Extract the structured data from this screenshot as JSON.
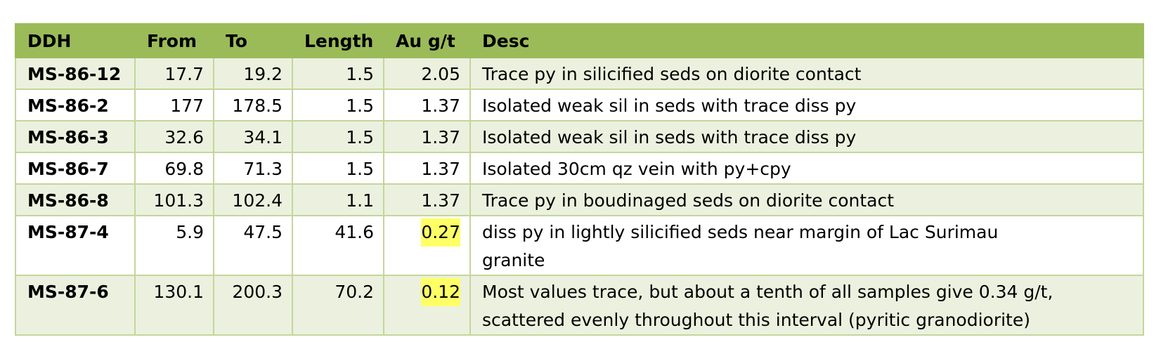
{
  "table": {
    "headers": [
      "DDH",
      "From",
      "To",
      "Length",
      "Au g/t",
      "Desc"
    ],
    "rows": [
      {
        "ddh": "MS-86-12",
        "from": "17.7",
        "to": "19.2",
        "length": "1.5",
        "au": "2.05",
        "highlight": false,
        "desc_lines": [
          "Trace py in silicified seds on diorite contact"
        ]
      },
      {
        "ddh": "MS-86-2",
        "from": "177",
        "to": "178.5",
        "length": "1.5",
        "au": "1.37",
        "highlight": false,
        "desc_lines": [
          "Isolated weak sil in seds with trace diss py"
        ]
      },
      {
        "ddh": "MS-86-3",
        "from": "32.6",
        "to": "34.1",
        "length": "1.5",
        "au": "1.37",
        "highlight": false,
        "desc_lines": [
          "Isolated weak sil in seds with trace diss py"
        ]
      },
      {
        "ddh": "MS-86-7",
        "from": "69.8",
        "to": "71.3",
        "length": "1.5",
        "au": "1.37",
        "highlight": false,
        "desc_lines": [
          "Isolated 30cm qz vein with py+cpy"
        ]
      },
      {
        "ddh": "MS-86-8",
        "from": "101.3",
        "to": "102.4",
        "length": "1.1",
        "au": "1.37",
        "highlight": false,
        "desc_lines": [
          "Trace py in boudinaged seds on diorite contact"
        ]
      },
      {
        "ddh": "MS-87-4",
        "from": "5.9",
        "to": "47.5",
        "length": "41.6",
        "au": "0.27",
        "highlight": true,
        "desc_lines": [
          "diss py in lightly silicified seds near margin of Lac Surimau",
          "granite"
        ]
      },
      {
        "ddh": "MS-87-6",
        "from": "130.1",
        "to": "200.3",
        "length": "70.2",
        "au": "0.12",
        "highlight": true,
        "desc_lines": [
          "Most values trace, but about a tenth of all samples give 0.34 g/t,",
          "scattered evenly throughout this interval (pyritic granodiorite)"
        ]
      }
    ]
  },
  "colors": {
    "header_bg": "#9bbb59",
    "row_band": "#ebf1de",
    "border": "#c3d69b",
    "highlight": "#ffff66"
  }
}
